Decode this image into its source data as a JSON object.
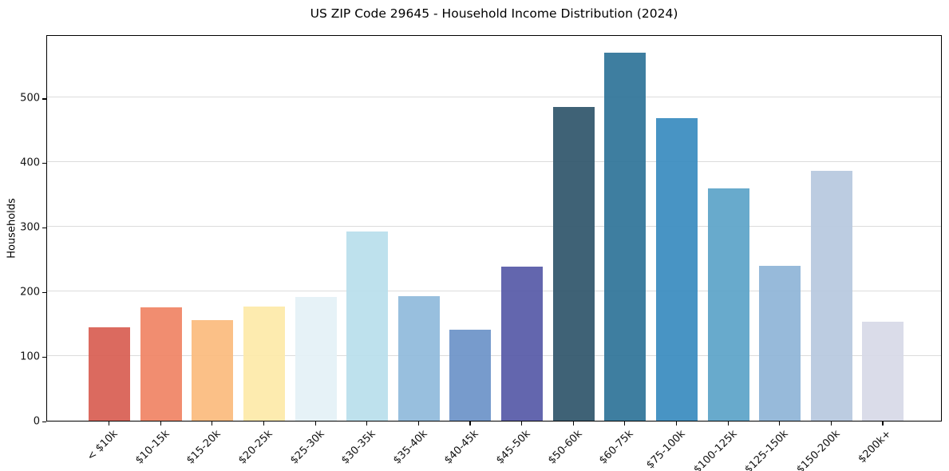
{
  "chart_data": {
    "type": "bar",
    "title": "US ZIP Code 29645 - Household Income Distribution (2024)",
    "xlabel": "",
    "ylabel": "Households",
    "categories": [
      "< $10k",
      "$10-15k",
      "$15-20k",
      "$20-25k",
      "$25-30k",
      "$30-35k",
      "$35-40k",
      "$40-45k",
      "$45-50k",
      "$50-60k",
      "$60-75k",
      "$75-100k",
      "$100-125k",
      "$125-150k",
      "$150-200k",
      "$200k+"
    ],
    "values": [
      145,
      175,
      156,
      177,
      192,
      293,
      193,
      141,
      238,
      486,
      569,
      468,
      360,
      240,
      387,
      153
    ],
    "bar_colors": [
      "#d85f53",
      "#f08465",
      "#fbbb7e",
      "#fde9a9",
      "#e4f1f6",
      "#b9dfec",
      "#90badb",
      "#6d93c8",
      "#575aa8",
      "#30566c",
      "#2f7499",
      "#3a8cbf",
      "#5ca4c8",
      "#8fb5d7",
      "#b7c8df",
      "#d7d9e7"
    ],
    "yticks": [
      0,
      100,
      200,
      300,
      400,
      500
    ],
    "ylim": [
      0,
      598
    ],
    "grid": "horizontal-light-gray",
    "legend": "none",
    "background_color": "#ffffff",
    "spine_color": "#000000"
  }
}
